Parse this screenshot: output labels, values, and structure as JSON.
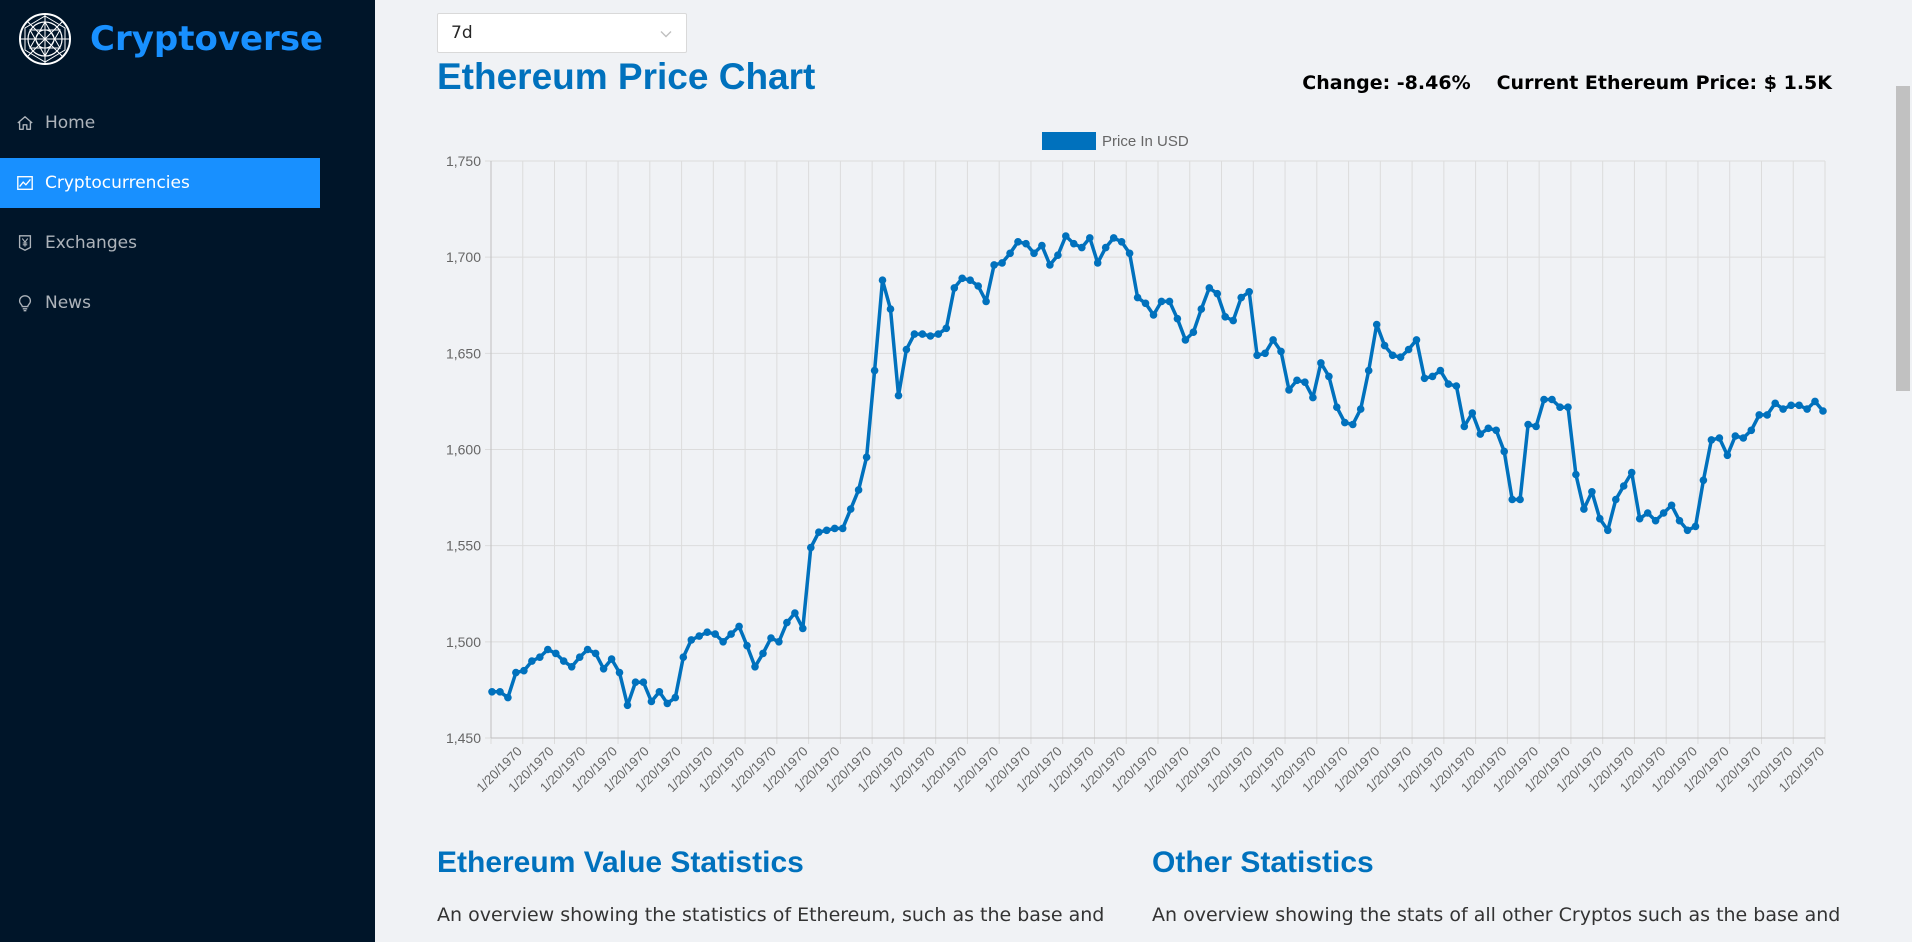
{
  "brand": {
    "name": "Cryptoverse",
    "logo_icon": "globe-icon"
  },
  "menu": [
    {
      "label": "Home",
      "icon": "home-icon",
      "active": false
    },
    {
      "label": "Cryptocurrencies",
      "icon": "line-chart-icon",
      "active": true
    },
    {
      "label": "Exchanges",
      "icon": "money-collect-icon",
      "active": false
    },
    {
      "label": "News",
      "icon": "bulb-icon",
      "active": false
    }
  ],
  "time_period": {
    "selected": "7d"
  },
  "page_title": "Ethereum Price Chart",
  "change_label": "Change: -8.46%",
  "current_price_label": "Current Ethereum Price: $ 1.5K",
  "sections": [
    {
      "title": "Ethereum Value Statistics",
      "text": "An overview showing the statistics of Ethereum, such as the base and"
    },
    {
      "title": "Other Statistics",
      "text": "An overview showing the stats of all other Cryptos such as the base and"
    }
  ],
  "colors": {
    "sidebar": "#001529",
    "accent": "#1890ff",
    "title": "#0071bd",
    "line": "#0071bd"
  },
  "chart_data": {
    "type": "line",
    "legend": "Price In USD",
    "legend_position": "top-center",
    "ylim": [
      1450,
      1750
    ],
    "yticks": [
      "1,450",
      "1,500",
      "1,550",
      "1,600",
      "1,650",
      "1,700",
      "1,750"
    ],
    "x_tick_label": "1/20/1970",
    "x_tick_count": 42,
    "grid": true,
    "series": [
      {
        "name": "Price In USD",
        "values": [
          1474,
          1474,
          1471,
          1484,
          1485,
          1490,
          1492,
          1496,
          1494,
          1490,
          1487,
          1492,
          1496,
          1494,
          1486,
          1491,
          1484,
          1467,
          1479,
          1479,
          1469,
          1474,
          1468,
          1471,
          1492,
          1501,
          1503,
          1505,
          1504,
          1500,
          1504,
          1508,
          1498,
          1487,
          1494,
          1502,
          1500,
          1510,
          1515,
          1507,
          1549,
          1557,
          1558,
          1559,
          1559,
          1569,
          1579,
          1596,
          1641,
          1688,
          1673,
          1628,
          1652,
          1660,
          1660,
          1659,
          1660,
          1663,
          1684,
          1689,
          1688,
          1685,
          1677,
          1696,
          1697,
          1702,
          1708,
          1707,
          1702,
          1706,
          1696,
          1701,
          1711,
          1707,
          1705,
          1710,
          1697,
          1705,
          1710,
          1708,
          1702,
          1679,
          1676,
          1670,
          1677,
          1677,
          1668,
          1657,
          1661,
          1673,
          1684,
          1681,
          1669,
          1667,
          1679,
          1682,
          1649,
          1650,
          1657,
          1651,
          1631,
          1636,
          1635,
          1627,
          1645,
          1638,
          1622,
          1614,
          1613,
          1621,
          1641,
          1665,
          1654,
          1649,
          1648,
          1652,
          1657,
          1637,
          1638,
          1641,
          1634,
          1633,
          1612,
          1619,
          1608,
          1611,
          1610,
          1599,
          1574,
          1574,
          1613,
          1612,
          1626,
          1626,
          1622,
          1622,
          1587,
          1569,
          1578,
          1564,
          1558,
          1574,
          1581,
          1588,
          1564,
          1567,
          1563,
          1567,
          1571,
          1563,
          1558,
          1560,
          1584,
          1605,
          1606,
          1597,
          1607,
          1606,
          1610,
          1618,
          1618,
          1624,
          1621,
          1623,
          1623,
          1621,
          1625,
          1620
        ]
      }
    ]
  }
}
